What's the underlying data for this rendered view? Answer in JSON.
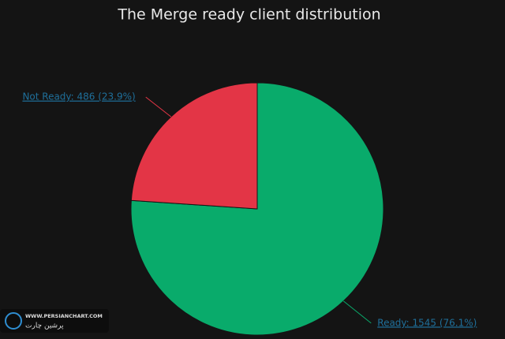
{
  "chart_data": {
    "type": "pie",
    "title": "The Merge ready client distribution",
    "values": [
      1545,
      486
    ],
    "value_labels": [
      "Ready: 1545 (76.1%)",
      "Not Ready: 486 (23.9%)"
    ],
    "colors": [
      "#09ab6b",
      "#e33546"
    ]
  },
  "watermark": {
    "url": "WWW.PERSIANCHART.COM",
    "name": "پرشین چارت"
  }
}
